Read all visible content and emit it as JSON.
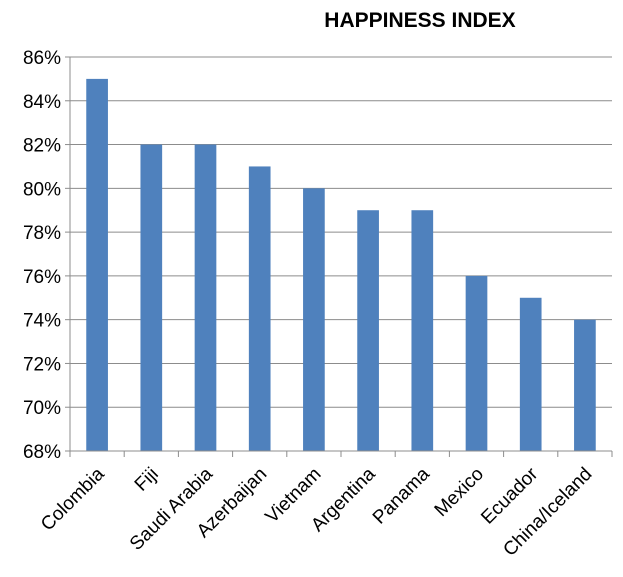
{
  "chart_data": {
    "type": "bar",
    "title": "HAPPINESS INDEX",
    "xlabel": "",
    "ylabel": "",
    "categories": [
      "Colombia",
      "Fiji",
      "Saudi Arabia",
      "Azerbaijan",
      "Vietnam",
      "Argentina",
      "Panama",
      "Mexico",
      "Ecuador",
      "China/Iceland"
    ],
    "values": [
      85,
      82,
      82,
      81,
      80,
      79,
      79,
      76,
      75,
      74
    ],
    "unit_suffix": "%",
    "ylim": [
      68,
      86
    ],
    "yticks": [
      68,
      70,
      72,
      74,
      76,
      78,
      80,
      82,
      84,
      86
    ],
    "ytick_labels": [
      "68%",
      "70%",
      "72%",
      "74%",
      "76%",
      "78%",
      "80%",
      "82%",
      "84%",
      "86%"
    ],
    "grid": true,
    "legend": "none",
    "bar_color": "#4F81BD",
    "grid_color": "#8C8C8C"
  }
}
